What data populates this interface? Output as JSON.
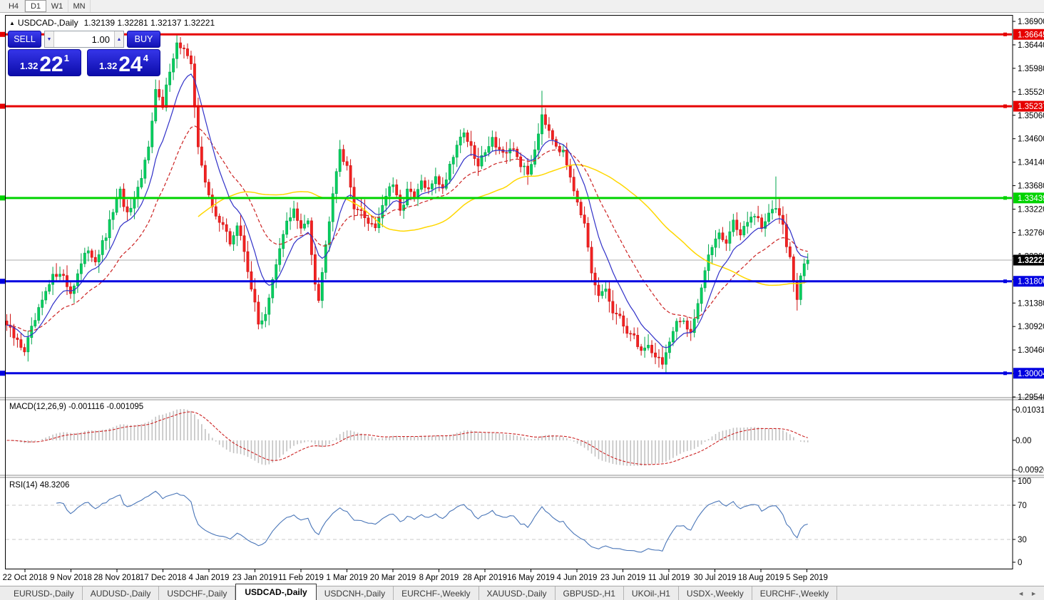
{
  "toolbar": {
    "timeframes": [
      "H4",
      "D1",
      "W1",
      "MN"
    ],
    "active": "D1"
  },
  "chart": {
    "title": {
      "symbol": "USDCAD-,Daily",
      "ohlc": "1.32139 1.32281 1.32137 1.32221",
      "collapse_icon": "▲"
    }
  },
  "trade": {
    "sell_label": "SELL",
    "buy_label": "BUY",
    "volume": "1.00",
    "spinner_down_icon": "▼",
    "spinner_up_icon": "▲",
    "sell_price": {
      "small": "1.32",
      "big": "22",
      "sup": "1"
    },
    "buy_price": {
      "small": "1.32",
      "big": "24",
      "sup": "4"
    }
  },
  "chart_data": {
    "type": "candlestick",
    "symbol": "USDCAD",
    "timeframe": "Daily",
    "title_ohlc": {
      "open": 1.32139,
      "high": 1.32281,
      "low": 1.32137,
      "close": 1.32221
    },
    "y_axis": {
      "max": 1.369,
      "min": 1.2954,
      "tick_step": 0.0046,
      "ticks": [
        "1.36900",
        "1.36440",
        "1.35980",
        "1.35520",
        "1.35060",
        "1.34600",
        "1.34140",
        "1.33680",
        "1.33220",
        "1.32760",
        "1.32300",
        "1.31840",
        "1.31380",
        "1.30920",
        "1.30460",
        "1.30000",
        "1.29540"
      ]
    },
    "x_axis_dates": [
      "22 Oct 2018",
      "9 Nov 2018",
      "28 Nov 2018",
      "17 Dec 2018",
      "4 Jan 2019",
      "23 Jan 2019",
      "11 Feb 2019",
      "1 Mar 2019",
      "20 Mar 2019",
      "8 Apr 2019",
      "28 Apr 2019",
      "16 May 2019",
      "4 Jun 2019",
      "23 Jun 2019",
      "11 Jul 2019",
      "30 Jul 2019",
      "18 Aug 2019",
      "5 Sep 2019"
    ],
    "num_candles": 227,
    "close_anchors_format": "[candle_index, close_price]",
    "close_anchors": [
      [
        0,
        1.3095
      ],
      [
        2,
        1.307
      ],
      [
        5,
        1.3046
      ],
      [
        7,
        1.3085
      ],
      [
        10,
        1.314
      ],
      [
        13,
        1.3188
      ],
      [
        15,
        1.3202
      ],
      [
        18,
        1.3158
      ],
      [
        20,
        1.3196
      ],
      [
        23,
        1.3244
      ],
      [
        25,
        1.3222
      ],
      [
        28,
        1.3268
      ],
      [
        30,
        1.332
      ],
      [
        32,
        1.3355
      ],
      [
        34,
        1.331
      ],
      [
        36,
        1.3335
      ],
      [
        38,
        1.338
      ],
      [
        40,
        1.345
      ],
      [
        42,
        1.3555
      ],
      [
        44,
        1.352
      ],
      [
        46,
        1.3598
      ],
      [
        48,
        1.3648
      ],
      [
        50,
        1.3635
      ],
      [
        52,
        1.36
      ],
      [
        54,
        1.345
      ],
      [
        56,
        1.337
      ],
      [
        58,
        1.3325
      ],
      [
        61,
        1.329
      ],
      [
        63,
        1.3255
      ],
      [
        65,
        1.329
      ],
      [
        67,
        1.324
      ],
      [
        69,
        1.317
      ],
      [
        71,
        1.3095
      ],
      [
        73,
        1.312
      ],
      [
        75,
        1.318
      ],
      [
        77,
        1.324
      ],
      [
        79,
        1.33
      ],
      [
        81,
        1.332
      ],
      [
        83,
        1.328
      ],
      [
        85,
        1.33
      ],
      [
        87,
        1.318
      ],
      [
        88,
        1.315
      ],
      [
        90,
        1.325
      ],
      [
        92,
        1.336
      ],
      [
        94,
        1.3442
      ],
      [
        96,
        1.34
      ],
      [
        98,
        1.333
      ],
      [
        101,
        1.3305
      ],
      [
        104,
        1.3288
      ],
      [
        107,
        1.335
      ],
      [
        109,
        1.337
      ],
      [
        111,
        1.3315
      ],
      [
        113,
        1.336
      ],
      [
        115,
        1.334
      ],
      [
        117,
        1.3375
      ],
      [
        119,
        1.3355
      ],
      [
        121,
        1.339
      ],
      [
        123,
        1.336
      ],
      [
        125,
        1.341
      ],
      [
        127,
        1.345
      ],
      [
        129,
        1.3475
      ],
      [
        131,
        1.344
      ],
      [
        133,
        1.3405
      ],
      [
        135,
        1.344
      ],
      [
        137,
        1.346
      ],
      [
        139,
        1.344
      ],
      [
        141,
        1.3425
      ],
      [
        143,
        1.344
      ],
      [
        145,
        1.341
      ],
      [
        147,
        1.339
      ],
      [
        149,
        1.344
      ],
      [
        151,
        1.351
      ],
      [
        153,
        1.348
      ],
      [
        155,
        1.345
      ],
      [
        157,
        1.343
      ],
      [
        159,
        1.339
      ],
      [
        161,
        1.334
      ],
      [
        163,
        1.329
      ],
      [
        165,
        1.319
      ],
      [
        167,
        1.315
      ],
      [
        169,
        1.3165
      ],
      [
        171,
        1.312
      ],
      [
        173,
        1.3105
      ],
      [
        175,
        1.3085
      ],
      [
        177,
        1.307
      ],
      [
        179,
        1.3045
      ],
      [
        181,
        1.3055
      ],
      [
        183,
        1.3035
      ],
      [
        185,
        1.3022
      ],
      [
        187,
        1.306
      ],
      [
        189,
        1.3095
      ],
      [
        191,
        1.3105
      ],
      [
        193,
        1.3082
      ],
      [
        195,
        1.314
      ],
      [
        197,
        1.32
      ],
      [
        199,
        1.325
      ],
      [
        201,
        1.328
      ],
      [
        203,
        1.3255
      ],
      [
        205,
        1.33
      ],
      [
        207,
        1.3272
      ],
      [
        209,
        1.3295
      ],
      [
        211,
        1.331
      ],
      [
        213,
        1.3285
      ],
      [
        215,
        1.331
      ],
      [
        217,
        1.333
      ],
      [
        219,
        1.33
      ],
      [
        220,
        1.3255
      ],
      [
        221,
        1.3225
      ],
      [
        222,
        1.318
      ],
      [
        223,
        1.3145
      ],
      [
        224,
        1.3185
      ],
      [
        225,
        1.3215
      ],
      [
        226,
        1.32221
      ]
    ],
    "bull_color": "#00cf5f",
    "bear_color": "#f32222",
    "hlines": [
      {
        "price": 1.36645,
        "label": "1.36645",
        "color": "#e60000"
      },
      {
        "price": 1.35237,
        "label": "1.35237",
        "color": "#e60000"
      },
      {
        "price": 1.33439,
        "label": "1.33439",
        "color": "#00d300"
      },
      {
        "price": 1.31806,
        "label": "1.31806",
        "color": "#0000e0"
      },
      {
        "price": 1.30004,
        "label": "1.30004",
        "color": "#0000e0"
      }
    ],
    "current_price": {
      "value": 1.32221,
      "label": "1.32221",
      "line_color": "#ababab",
      "label_bg": "#000000"
    },
    "moving_averages": [
      {
        "period": 55,
        "style": "solid",
        "color": "#ffd700"
      },
      {
        "period": 25,
        "style": "dashed",
        "color": "#cc2222"
      },
      {
        "period": 10,
        "style": "solid",
        "color": "#3030c8"
      }
    ],
    "macd": {
      "label": "MACD(12,26,9) -0.001116 -0.001095",
      "params": [
        12,
        26,
        9
      ],
      "current_main": -0.001116,
      "current_signal": -0.001095,
      "axis_labels": [
        "0.010311",
        "0.00",
        "-0.009203"
      ],
      "hist_color": "#c2c2c2",
      "signal_color": "#cc2222"
    },
    "rsi": {
      "label": "RSI(14) 48.3206",
      "period": 14,
      "current": 48.3206,
      "axis_labels": [
        "100",
        "70",
        "30",
        "0"
      ],
      "levels": [
        70,
        30
      ],
      "color": "#4a76b8",
      "level_color": "#c8c8c8"
    }
  },
  "tabs": {
    "active_index": 3,
    "items": [
      "EURUSD-,Daily",
      "AUDUSD-,Daily",
      "USDCHF-,Daily",
      "USDCAD-,Daily",
      "USDCNH-,Daily",
      "EURCHF-,Weekly",
      "XAUUSD-,Daily",
      "GBPUSD-,H1",
      "UKOil-,H1",
      "USDX-,Weekly",
      "EURCHF-,Weekly"
    ],
    "scroll_left_icon": "◄",
    "scroll_right_icon": "►"
  }
}
